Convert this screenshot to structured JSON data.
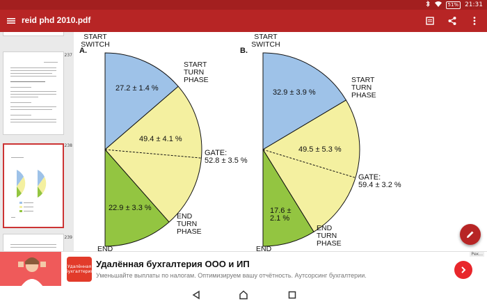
{
  "status": {
    "time": "21:31",
    "battery": "51%",
    "icons": [
      "bluetooth-icon",
      "wifi-icon",
      "battery-icon"
    ]
  },
  "appbar": {
    "title": "reid phd 2010.pdf",
    "actions": [
      "reading-mode-icon",
      "share-icon",
      "more-icon"
    ]
  },
  "sidebar": {
    "pages": [
      {
        "number": "237"
      },
      {
        "number": "238"
      },
      {
        "number": "239"
      }
    ],
    "selected": "238"
  },
  "document": {
    "chart_data": [
      {
        "type": "pie",
        "panel_label": "A.",
        "slices": [
          {
            "label": "START SWITCH",
            "value_text": "27.2 ± 1.4 %",
            "value": 27.2,
            "color": "#9ec2e8"
          },
          {
            "label": "START TURN PHASE",
            "value_text": "49.4 ± 4.1 %",
            "value": 49.4,
            "color": "#f4f0a0"
          },
          {
            "label": "END TURN PHASE",
            "value_text": "22.9 ± 3.3 %",
            "value": 22.9,
            "color": "#93c541"
          }
        ],
        "gate": {
          "label": "GATE:",
          "value_text": "52.8 ± 3.5 %",
          "value": 52.8
        },
        "boundary_labels": [
          "START SWITCH",
          "START TURN PHASE",
          "END TURN PHASE",
          "END"
        ]
      },
      {
        "type": "pie",
        "panel_label": "B.",
        "slices": [
          {
            "label": "START SWITCH",
            "value_text": "32.9 ± 3.9 %",
            "value": 32.9,
            "color": "#9ec2e8"
          },
          {
            "label": "START TURN PHASE",
            "value_text": "49.5 ± 5.3 %",
            "value": 49.5,
            "color": "#f4f0a0"
          },
          {
            "label": "END TURN PHASE",
            "value_text": "17.6 ± 2.1 %",
            "value": 17.6,
            "color": "#93c541"
          }
        ],
        "gate": {
          "label": "GATE:",
          "value_text": "59.4 ± 3.2 %",
          "value": 59.4
        },
        "boundary_labels": [
          "START SWITCH",
          "START TURN PHASE",
          "END TURN PHASE",
          "END"
        ]
      }
    ]
  },
  "ad": {
    "headline": "Удалённая бухгалтерия ООО и ИП",
    "subline": "Уменьшайте выплаты по налогам. Оптимизируем вашу отчётность. Аутсорсинг бухгалтерии.",
    "badge": "Рек...",
    "logo_text": "Удалённая бухгалтерия"
  },
  "colors": {
    "accent": "#b72525",
    "status": "#a31f1f"
  }
}
